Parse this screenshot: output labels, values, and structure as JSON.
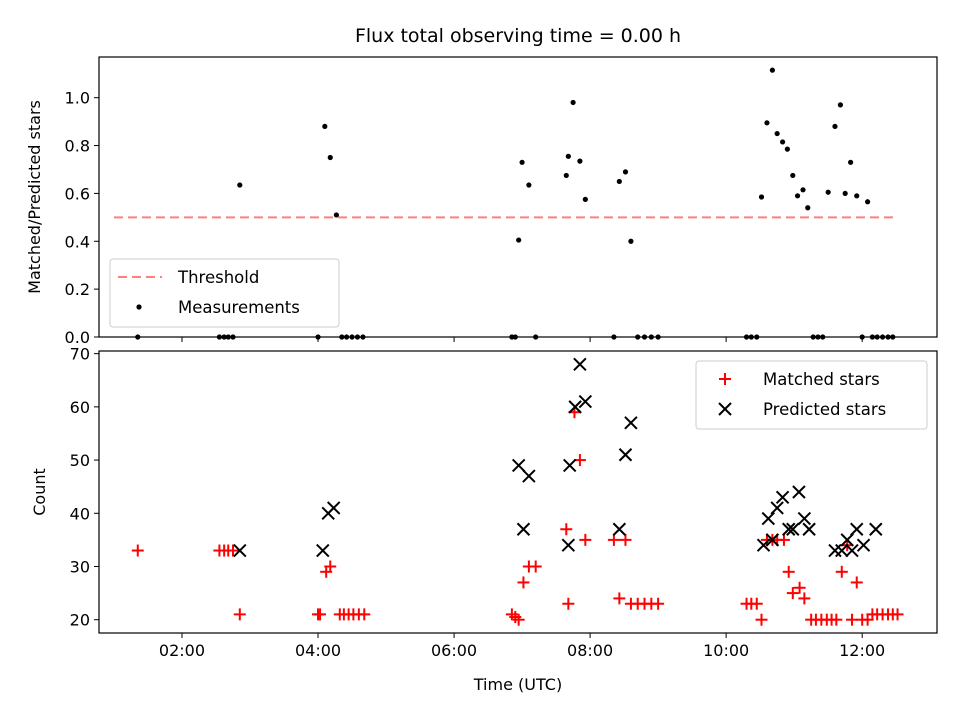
{
  "chart_data": [
    {
      "type": "scatter",
      "title": "Flux total observing time = 0.00 h",
      "xlabel": "",
      "ylabel": "Matched/Predicted stars",
      "xlim": [
        0.78,
        13.1
      ],
      "ylim": [
        0,
        1.17
      ],
      "yticks": [
        0.0,
        0.2,
        0.4,
        0.6,
        0.8,
        1.0
      ],
      "xticks": [
        2,
        4,
        6,
        8,
        10,
        12
      ],
      "legend_position": "lower-left",
      "grid": false,
      "threshold": {
        "name": "Threshold",
        "value": 0.5,
        "x_range": [
          1.0,
          12.5
        ],
        "color": "#ff7f7f"
      },
      "series": [
        {
          "name": "Measurements",
          "color": "#000000",
          "points": [
            [
              1.35,
              0
            ],
            [
              2.55,
              0
            ],
            [
              2.62,
              0
            ],
            [
              2.68,
              0
            ],
            [
              2.75,
              0
            ],
            [
              2.85,
              0.635
            ],
            [
              4.0,
              0
            ],
            [
              4.1,
              0.88
            ],
            [
              4.18,
              0.75
            ],
            [
              4.27,
              0.51
            ],
            [
              4.35,
              0
            ],
            [
              4.42,
              0
            ],
            [
              4.5,
              0
            ],
            [
              4.58,
              0
            ],
            [
              4.66,
              0
            ],
            [
              6.85,
              0
            ],
            [
              6.9,
              0
            ],
            [
              6.95,
              0.405
            ],
            [
              7.0,
              0.73
            ],
            [
              7.1,
              0.635
            ],
            [
              7.2,
              0
            ],
            [
              7.65,
              0.675
            ],
            [
              7.68,
              0.755
            ],
            [
              7.75,
              0.98
            ],
            [
              7.85,
              0.735
            ],
            [
              7.93,
              0.575
            ],
            [
              8.35,
              0
            ],
            [
              8.43,
              0.65
            ],
            [
              8.52,
              0.69
            ],
            [
              8.6,
              0.4
            ],
            [
              8.7,
              0
            ],
            [
              8.8,
              0
            ],
            [
              8.9,
              0
            ],
            [
              9.0,
              0
            ],
            [
              10.3,
              0
            ],
            [
              10.37,
              0
            ],
            [
              10.45,
              0
            ],
            [
              10.52,
              0.585
            ],
            [
              10.6,
              0.895
            ],
            [
              10.68,
              1.115
            ],
            [
              10.75,
              0.85
            ],
            [
              10.83,
              0.815
            ],
            [
              10.9,
              0.785
            ],
            [
              10.98,
              0.675
            ],
            [
              11.05,
              0.59
            ],
            [
              11.13,
              0.615
            ],
            [
              11.2,
              0.54
            ],
            [
              11.28,
              0
            ],
            [
              11.35,
              0
            ],
            [
              11.42,
              0
            ],
            [
              11.5,
              0.605
            ],
            [
              11.6,
              0.88
            ],
            [
              11.68,
              0.97
            ],
            [
              11.75,
              0.6
            ],
            [
              11.83,
              0.73
            ],
            [
              11.92,
              0.59
            ],
            [
              12.0,
              0
            ],
            [
              12.08,
              0.565
            ],
            [
              12.15,
              0
            ],
            [
              12.22,
              0
            ],
            [
              12.3,
              0
            ],
            [
              12.38,
              0
            ],
            [
              12.45,
              0
            ]
          ]
        }
      ]
    },
    {
      "type": "scatter",
      "title": "",
      "xlabel": "Time (UTC)",
      "ylabel": "Count",
      "xlim": [
        0.78,
        13.1
      ],
      "ylim": [
        17.5,
        70.5
      ],
      "yticks": [
        20,
        30,
        40,
        50,
        60,
        70
      ],
      "xticks": [
        2,
        4,
        6,
        8,
        10,
        12
      ],
      "xtick_labels": [
        "02:00",
        "04:00",
        "06:00",
        "08:00",
        "10:00",
        "12:00"
      ],
      "legend_position": "upper-right",
      "grid": false,
      "series": [
        {
          "name": "Matched stars",
          "color": "#ff0000",
          "marker": "plus",
          "points": [
            [
              1.35,
              33
            ],
            [
              2.55,
              33
            ],
            [
              2.62,
              33
            ],
            [
              2.68,
              33
            ],
            [
              2.75,
              33
            ],
            [
              2.85,
              21
            ],
            [
              4.0,
              21
            ],
            [
              4.03,
              21
            ],
            [
              4.12,
              29
            ],
            [
              4.18,
              30
            ],
            [
              4.32,
              21
            ],
            [
              4.38,
              21
            ],
            [
              4.45,
              21
            ],
            [
              4.52,
              21
            ],
            [
              4.6,
              21
            ],
            [
              4.68,
              21
            ],
            [
              6.85,
              21
            ],
            [
              6.9,
              20.5
            ],
            [
              6.95,
              20
            ],
            [
              7.02,
              27
            ],
            [
              7.1,
              30
            ],
            [
              7.2,
              30
            ],
            [
              7.65,
              37
            ],
            [
              7.68,
              23
            ],
            [
              7.77,
              59
            ],
            [
              7.85,
              50
            ],
            [
              7.93,
              35
            ],
            [
              8.35,
              35
            ],
            [
              8.43,
              24
            ],
            [
              8.52,
              35
            ],
            [
              8.6,
              23
            ],
            [
              8.7,
              23
            ],
            [
              8.8,
              23
            ],
            [
              8.9,
              23
            ],
            [
              9.0,
              23
            ],
            [
              10.3,
              23
            ],
            [
              10.37,
              23
            ],
            [
              10.45,
              23
            ],
            [
              10.52,
              20
            ],
            [
              10.6,
              35
            ],
            [
              10.68,
              35
            ],
            [
              10.75,
              35
            ],
            [
              10.85,
              35
            ],
            [
              10.92,
              29
            ],
            [
              10.98,
              25
            ],
            [
              11.08,
              26
            ],
            [
              11.15,
              24
            ],
            [
              11.25,
              20
            ],
            [
              11.32,
              20
            ],
            [
              11.4,
              20
            ],
            [
              11.48,
              20
            ],
            [
              11.55,
              20
            ],
            [
              11.62,
              20
            ],
            [
              11.7,
              29
            ],
            [
              11.78,
              34
            ],
            [
              11.85,
              20
            ],
            [
              11.92,
              27
            ],
            [
              12.0,
              20
            ],
            [
              12.08,
              20
            ],
            [
              12.15,
              21
            ],
            [
              12.22,
              21
            ],
            [
              12.3,
              21
            ],
            [
              12.38,
              21
            ],
            [
              12.45,
              21
            ],
            [
              12.52,
              21
            ]
          ]
        },
        {
          "name": "Predicted stars",
          "color": "#000000",
          "marker": "x",
          "points": [
            [
              2.85,
              33
            ],
            [
              4.07,
              33
            ],
            [
              4.15,
              40
            ],
            [
              4.23,
              41
            ],
            [
              6.95,
              49
            ],
            [
              7.02,
              37
            ],
            [
              7.1,
              47
            ],
            [
              7.68,
              34
            ],
            [
              7.7,
              49
            ],
            [
              7.78,
              60
            ],
            [
              7.85,
              68
            ],
            [
              7.93,
              61
            ],
            [
              8.43,
              37
            ],
            [
              8.52,
              51
            ],
            [
              8.6,
              57
            ],
            [
              10.55,
              34
            ],
            [
              10.62,
              39
            ],
            [
              10.68,
              35
            ],
            [
              10.75,
              41
            ],
            [
              10.83,
              43
            ],
            [
              10.92,
              37
            ],
            [
              10.98,
              37
            ],
            [
              11.07,
              44
            ],
            [
              11.15,
              39
            ],
            [
              11.22,
              37
            ],
            [
              11.6,
              33
            ],
            [
              11.7,
              33
            ],
            [
              11.78,
              35
            ],
            [
              11.85,
              33
            ],
            [
              11.92,
              37
            ],
            [
              12.02,
              34
            ],
            [
              12.2,
              37
            ]
          ]
        }
      ]
    }
  ]
}
